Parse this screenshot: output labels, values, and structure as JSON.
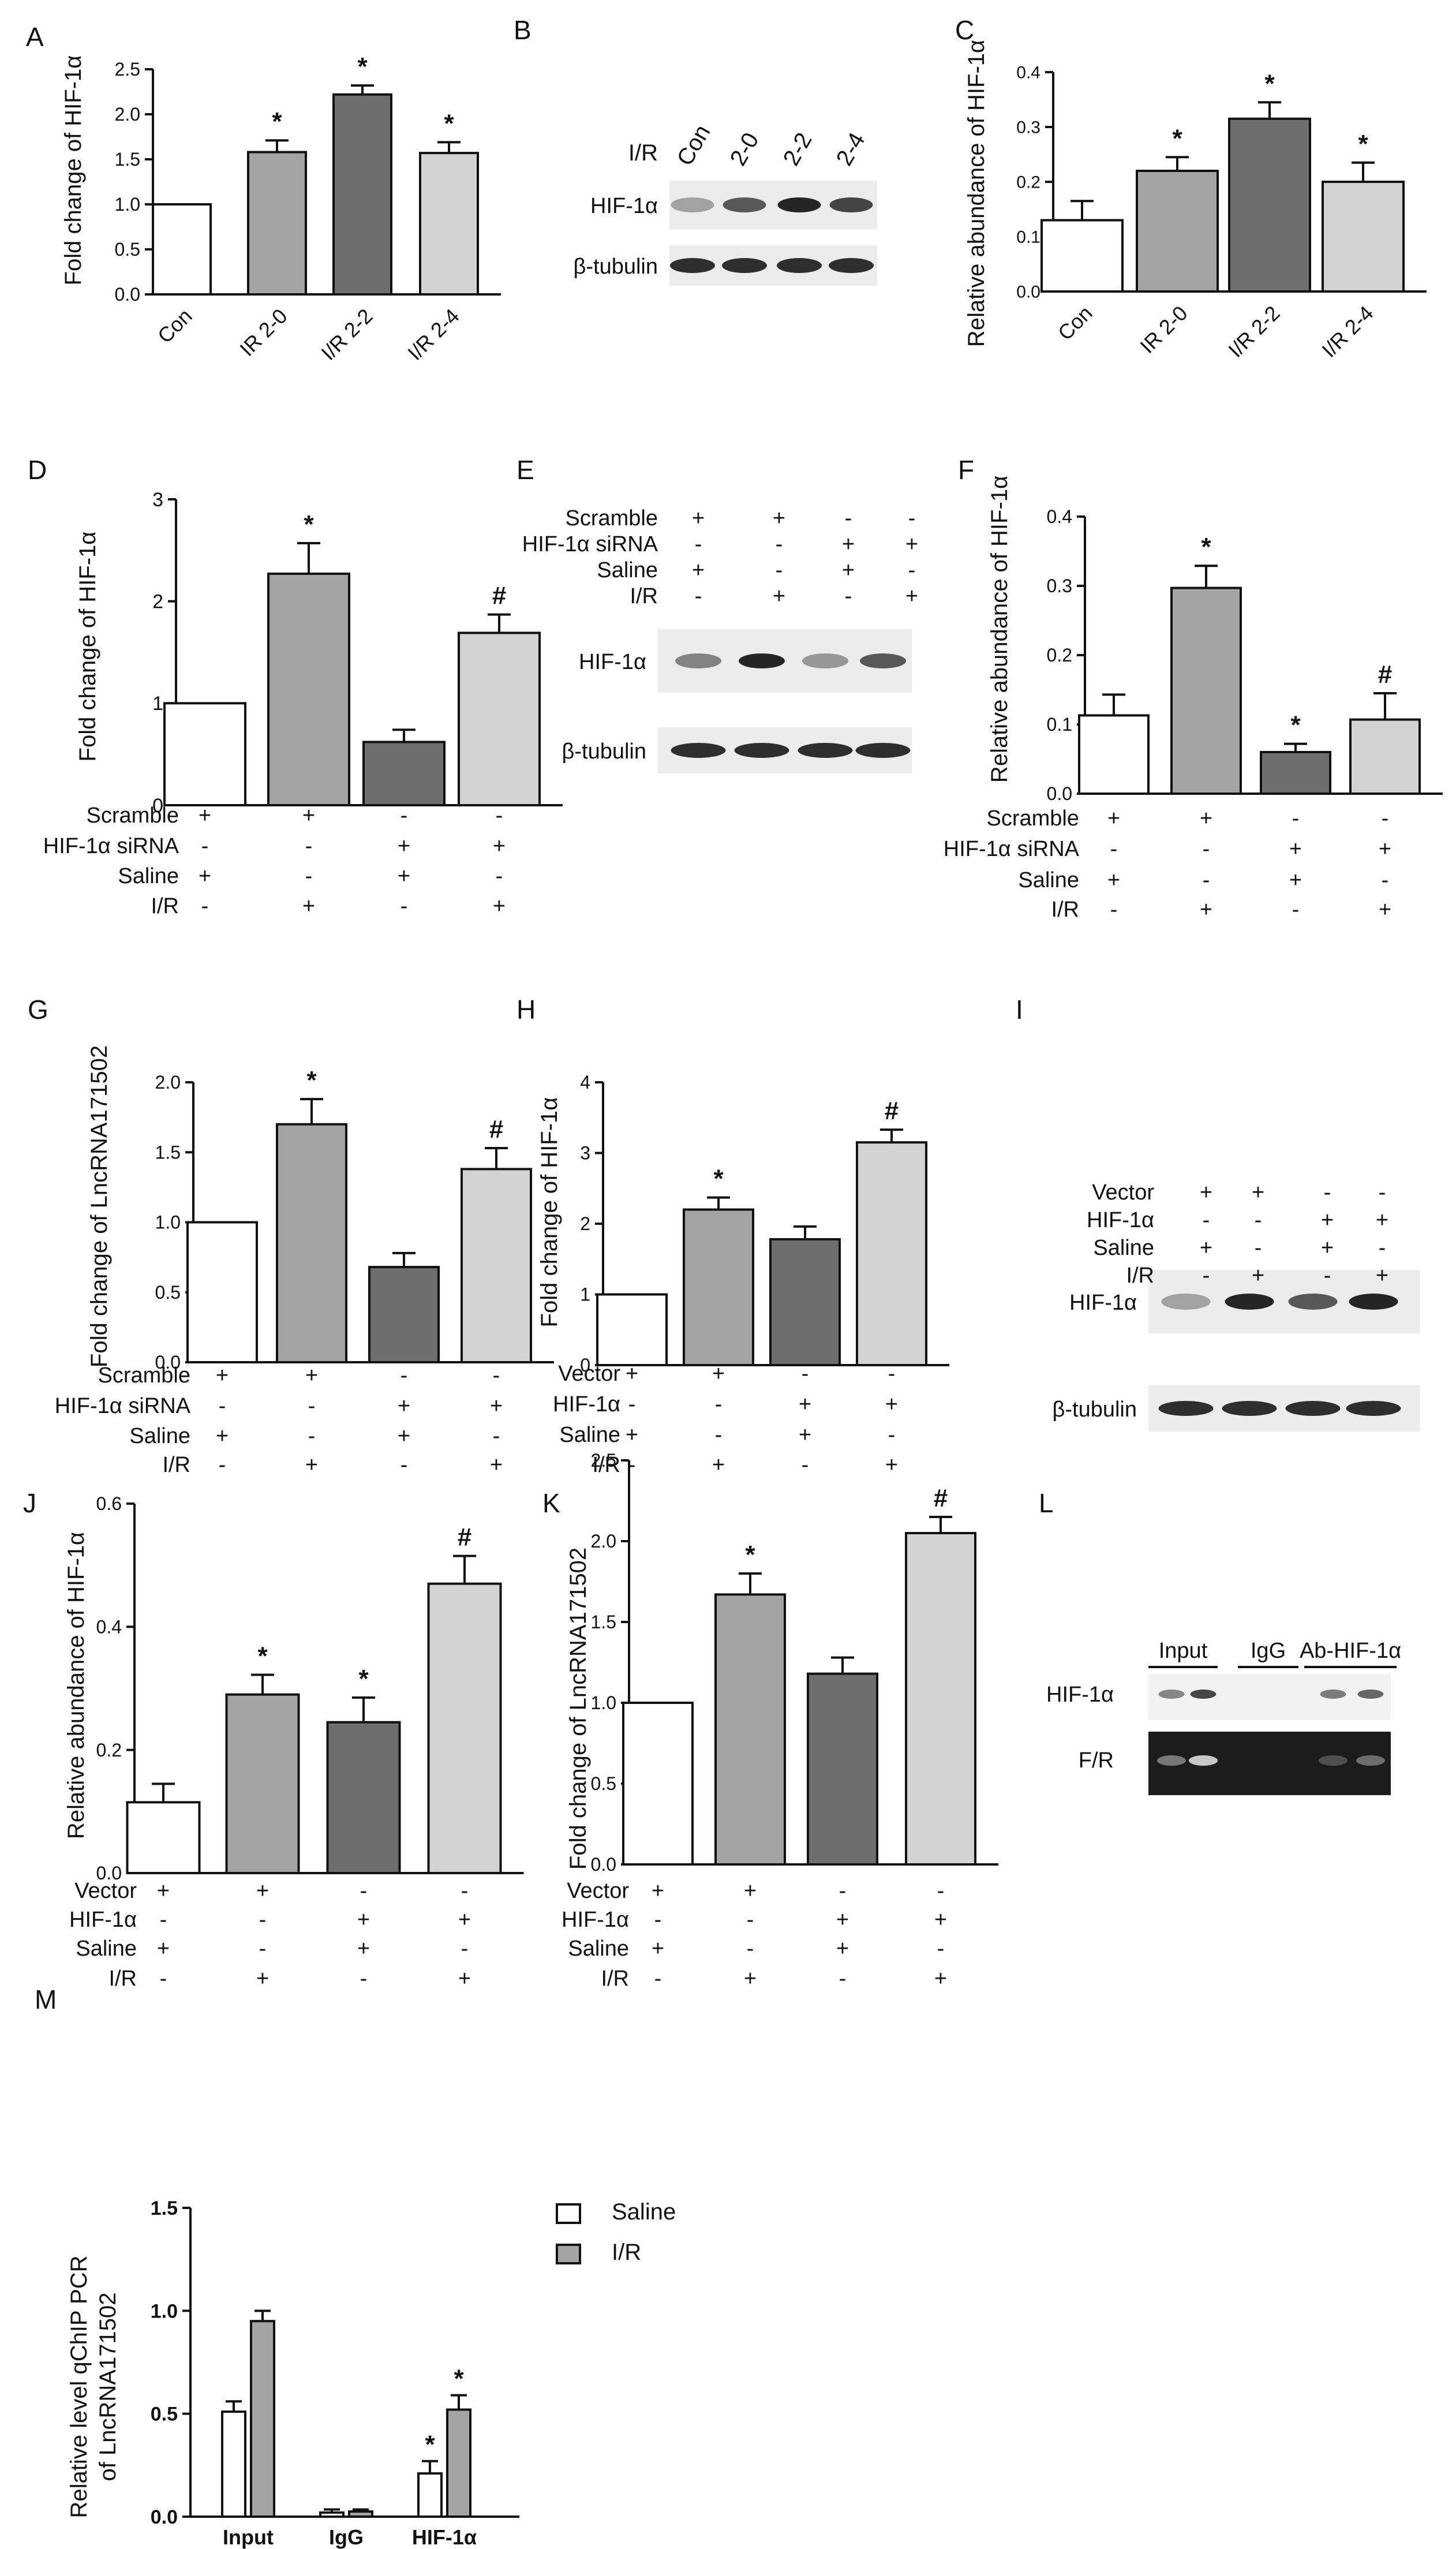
{
  "panel_letters": [
    "A",
    "B",
    "C",
    "D",
    "E",
    "F",
    "G",
    "H",
    "I",
    "J",
    "K",
    "L",
    "M"
  ],
  "conditions": {
    "scramble_set": [
      "Scramble",
      "HIF-1α siRNA",
      "Saline",
      "I/R"
    ],
    "scramble_signs": [
      [
        "+",
        "+",
        "-",
        "-"
      ],
      [
        "-",
        "-",
        "+",
        "+"
      ],
      [
        "+",
        "-",
        "+",
        "-"
      ],
      [
        "-",
        "+",
        "-",
        "+"
      ]
    ],
    "vector_set": [
      "Vector",
      "HIF-1α",
      "Saline",
      "I/R"
    ],
    "vector_signs": [
      [
        "+",
        "+",
        "-",
        "-"
      ],
      [
        "-",
        "-",
        "+",
        "+"
      ],
      [
        "+",
        "-",
        "+",
        "-"
      ],
      [
        "-",
        "+",
        "-",
        "+"
      ]
    ]
  },
  "colors": {
    "c1": "#ffffff",
    "c2": "#a4a4a4",
    "c3": "#6e6e6e",
    "c4": "#d3d3d3",
    "axis": "#111111"
  },
  "blots": {
    "B": {
      "row_label": "I/R",
      "lanes": [
        "Con",
        "2-0",
        "2-2",
        "2-4"
      ],
      "bands": [
        "HIF-1α",
        "β-tubulin"
      ]
    },
    "E": {
      "bands": [
        "HIF-1α",
        "β-tubulin"
      ]
    },
    "I": {
      "bands": [
        "HIF-1α",
        "β-tubulin"
      ]
    },
    "L": {
      "groups": [
        "Input",
        "IgG",
        "Ab-HIF-1α"
      ],
      "bands": [
        "HIF-1α",
        "F/R"
      ]
    }
  },
  "chart_data": [
    {
      "id": "A",
      "type": "bar",
      "ylabel": "Fold change of HIF-1α",
      "ylim": [
        0,
        2.5
      ],
      "ticks": [
        0,
        0.5,
        1.0,
        1.5,
        2.0,
        2.5
      ],
      "tick_labels": [
        "0.0",
        "0.5",
        "1.0",
        "1.5",
        "2.0",
        "2.5"
      ],
      "categories": [
        "Con",
        "IR 2-0",
        "I/R 2-2",
        "I/R 2-4"
      ],
      "values": [
        1.0,
        1.58,
        2.22,
        1.57
      ],
      "errors": [
        0,
        0.13,
        0.1,
        0.12
      ],
      "marks": [
        "",
        "*",
        "*",
        "*"
      ],
      "xlabels_rotated": true
    },
    {
      "id": "C",
      "type": "bar",
      "ylabel": "Relative abundance of HIF-1α",
      "ylim": [
        0,
        0.4
      ],
      "ticks": [
        0,
        0.1,
        0.2,
        0.3,
        0.4
      ],
      "tick_labels": [
        "0.0",
        "0.1",
        "0.2",
        "0.3",
        "0.4"
      ],
      "categories": [
        "Con",
        "IR 2-0",
        "I/R 2-2",
        "I/R 2-4"
      ],
      "values": [
        0.13,
        0.22,
        0.315,
        0.2
      ],
      "errors": [
        0.035,
        0.025,
        0.03,
        0.035
      ],
      "marks": [
        "",
        "*",
        "*",
        "*"
      ],
      "xlabels_rotated": true
    },
    {
      "id": "D",
      "type": "bar",
      "ylabel": "Fold change of HIF-1α",
      "ylim": [
        0,
        3
      ],
      "ticks": [
        0,
        1,
        2,
        3
      ],
      "tick_labels": [
        "0",
        "1",
        "2",
        "3"
      ],
      "values": [
        1.0,
        2.27,
        0.62,
        1.69
      ],
      "errors": [
        0,
        0.3,
        0.12,
        0.18
      ],
      "marks": [
        "",
        "*",
        "",
        "#"
      ],
      "condition_set": "scramble"
    },
    {
      "id": "F",
      "type": "bar",
      "ylabel": "Relative abundance of HIF-1α",
      "ylim": [
        0,
        0.4
      ],
      "ticks": [
        0,
        0.1,
        0.2,
        0.3,
        0.4
      ],
      "tick_labels": [
        "0.0",
        "0.1",
        "0.2",
        "0.3",
        "0.4"
      ],
      "values": [
        0.113,
        0.297,
        0.06,
        0.107
      ],
      "errors": [
        0.03,
        0.032,
        0.012,
        0.038
      ],
      "marks": [
        "",
        "*",
        "*",
        "#"
      ],
      "condition_set": "scramble"
    },
    {
      "id": "G",
      "type": "bar",
      "ylabel": "Fold change of LncRNA171502",
      "ylim": [
        0,
        2.0
      ],
      "ticks": [
        0,
        0.5,
        1.0,
        1.5,
        2.0
      ],
      "tick_labels": [
        "0.0",
        "0.5",
        "1.0",
        "1.5",
        "2.0"
      ],
      "values": [
        1.0,
        1.7,
        0.68,
        1.38
      ],
      "errors": [
        0,
        0.18,
        0.1,
        0.15
      ],
      "marks": [
        "",
        "*",
        "",
        "#"
      ],
      "condition_set": "scramble"
    },
    {
      "id": "H",
      "type": "bar",
      "ylabel": "Fold change of HIF-1α",
      "ylim": [
        0,
        4
      ],
      "ticks": [
        0,
        1,
        2,
        3,
        4
      ],
      "tick_labels": [
        "0",
        "1",
        "2",
        "3",
        "4"
      ],
      "values": [
        1.0,
        2.2,
        1.78,
        3.15
      ],
      "errors": [
        0,
        0.17,
        0.18,
        0.18
      ],
      "marks": [
        "",
        "*",
        "",
        "#"
      ],
      "condition_set": "vector"
    },
    {
      "id": "J",
      "type": "bar",
      "ylabel": "Relative abundance of HIF-1α",
      "ylim": [
        0,
        0.6
      ],
      "ticks": [
        0,
        0.2,
        0.4,
        0.6
      ],
      "tick_labels": [
        "0.0",
        "0.2",
        "0.4",
        "0.6"
      ],
      "values": [
        0.115,
        0.29,
        0.245,
        0.47
      ],
      "errors": [
        0.03,
        0.032,
        0.04,
        0.045
      ],
      "marks": [
        "",
        "*",
        "*",
        "#"
      ],
      "condition_set": "vector"
    },
    {
      "id": "K",
      "type": "bar",
      "ylabel": "Fold change of LncRNA171502",
      "ylim": [
        0,
        2.5
      ],
      "ticks": [
        0,
        0.5,
        1.0,
        1.5,
        2.0,
        2.5
      ],
      "tick_labels": [
        "0.0",
        "0.5",
        "1.0",
        "1.5",
        "2.0",
        "2.5"
      ],
      "values": [
        1.0,
        1.67,
        1.18,
        2.05
      ],
      "errors": [
        0,
        0.13,
        0.1,
        0.1
      ],
      "marks": [
        "",
        "*",
        "",
        "#"
      ],
      "condition_set": "vector"
    },
    {
      "id": "M",
      "type": "bar",
      "ylabel": [
        "Relative level qChIP PCR",
        "of LncRNA171502"
      ],
      "ylim": [
        0,
        1.5
      ],
      "ticks": [
        0,
        0.5,
        1.0,
        1.5
      ],
      "tick_labels": [
        "0.0",
        "0.5",
        "1.0",
        "1.5"
      ],
      "categories": [
        "Input",
        "IgG",
        "HIF-1α"
      ],
      "series": [
        {
          "name": "Saline",
          "values": [
            0.51,
            0.02,
            0.21
          ],
          "errors": [
            0.05,
            0.015,
            0.06
          ],
          "marks": [
            "",
            "",
            "*"
          ]
        },
        {
          "name": "I/R",
          "values": [
            0.95,
            0.025,
            0.52
          ],
          "errors": [
            0.05,
            0.01,
            0.07
          ],
          "marks": [
            "",
            "",
            "*"
          ]
        }
      ],
      "legend": [
        "Saline",
        "I/R"
      ]
    }
  ]
}
